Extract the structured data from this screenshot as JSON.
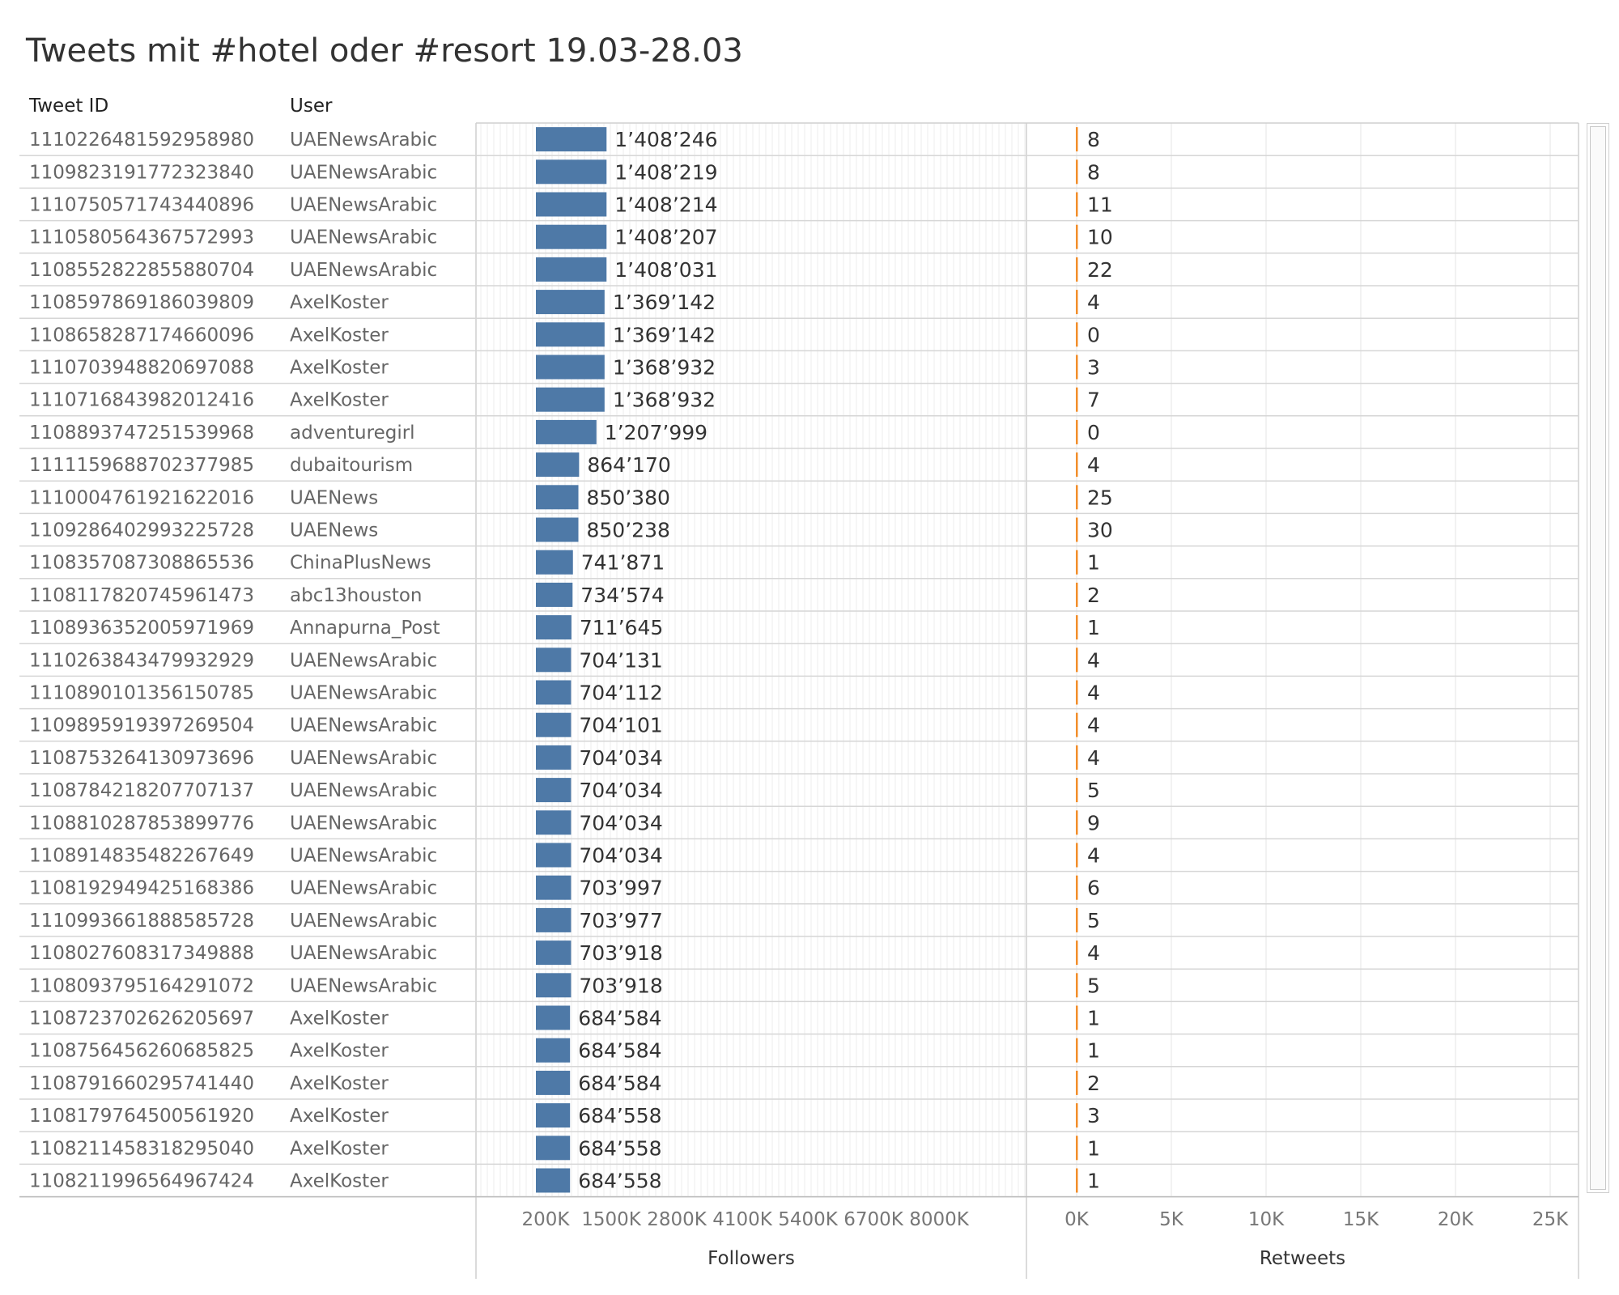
{
  "title": "Tweets mit #hotel oder #resort 19.03-28.03",
  "columns": {
    "tweet_id": "Tweet ID",
    "user": "User"
  },
  "chart_data": {
    "type": "bar",
    "title": "Tweets mit #hotel oder #resort 19.03-28.03",
    "rows": [
      {
        "tweet_id": "1110226481592958980",
        "user": "UAENewsArabic",
        "followers": 1408246,
        "followers_label": "1’408’246",
        "retweets": 8
      },
      {
        "tweet_id": "1109823191772323840",
        "user": "UAENewsArabic",
        "followers": 1408219,
        "followers_label": "1’408’219",
        "retweets": 8
      },
      {
        "tweet_id": "1110750571743440896",
        "user": "UAENewsArabic",
        "followers": 1408214,
        "followers_label": "1’408’214",
        "retweets": 11
      },
      {
        "tweet_id": "1110580564367572993",
        "user": "UAENewsArabic",
        "followers": 1408207,
        "followers_label": "1’408’207",
        "retweets": 10
      },
      {
        "tweet_id": "1108552822855880704",
        "user": "UAENewsArabic",
        "followers": 1408031,
        "followers_label": "1’408’031",
        "retweets": 22
      },
      {
        "tweet_id": "1108597869186039809",
        "user": "AxelKoster",
        "followers": 1369142,
        "followers_label": "1’369’142",
        "retweets": 4
      },
      {
        "tweet_id": "1108658287174660096",
        "user": "AxelKoster",
        "followers": 1369142,
        "followers_label": "1’369’142",
        "retweets": 0
      },
      {
        "tweet_id": "1110703948820697088",
        "user": "AxelKoster",
        "followers": 1368932,
        "followers_label": "1’368’932",
        "retweets": 3
      },
      {
        "tweet_id": "1110716843982012416",
        "user": "AxelKoster",
        "followers": 1368932,
        "followers_label": "1’368’932",
        "retweets": 7
      },
      {
        "tweet_id": "1108893747251539968",
        "user": "adventuregirl",
        "followers": 1207999,
        "followers_label": "1’207’999",
        "retweets": 0
      },
      {
        "tweet_id": "1111159688702377985",
        "user": "dubaitourism",
        "followers": 864170,
        "followers_label": "864’170",
        "retweets": 4
      },
      {
        "tweet_id": "1110004761921622016",
        "user": "UAENews",
        "followers": 850380,
        "followers_label": "850’380",
        "retweets": 25
      },
      {
        "tweet_id": "1109286402993225728",
        "user": "UAENews",
        "followers": 850238,
        "followers_label": "850’238",
        "retweets": 30
      },
      {
        "tweet_id": "1108357087308865536",
        "user": "ChinaPlusNews",
        "followers": 741871,
        "followers_label": "741’871",
        "retweets": 1
      },
      {
        "tweet_id": "1108117820745961473",
        "user": "abc13houston",
        "followers": 734574,
        "followers_label": "734’574",
        "retweets": 2
      },
      {
        "tweet_id": "1108936352005971969",
        "user": "Annapurna_Post",
        "followers": 711645,
        "followers_label": "711’645",
        "retweets": 1
      },
      {
        "tweet_id": "1110263843479932929",
        "user": "UAENewsArabic",
        "followers": 704131,
        "followers_label": "704’131",
        "retweets": 4
      },
      {
        "tweet_id": "1110890101356150785",
        "user": "UAENewsArabic",
        "followers": 704112,
        "followers_label": "704’112",
        "retweets": 4
      },
      {
        "tweet_id": "1109895919397269504",
        "user": "UAENewsArabic",
        "followers": 704101,
        "followers_label": "704’101",
        "retweets": 4
      },
      {
        "tweet_id": "1108753264130973696",
        "user": "UAENewsArabic",
        "followers": 704034,
        "followers_label": "704’034",
        "retweets": 4
      },
      {
        "tweet_id": "1108784218207707137",
        "user": "UAENewsArabic",
        "followers": 704034,
        "followers_label": "704’034",
        "retweets": 5
      },
      {
        "tweet_id": "1108810287853899776",
        "user": "UAENewsArabic",
        "followers": 704034,
        "followers_label": "704’034",
        "retweets": 9
      },
      {
        "tweet_id": "1108914835482267649",
        "user": "UAENewsArabic",
        "followers": 704034,
        "followers_label": "704’034",
        "retweets": 4
      },
      {
        "tweet_id": "1108192949425168386",
        "user": "UAENewsArabic",
        "followers": 703997,
        "followers_label": "703’997",
        "retweets": 6
      },
      {
        "tweet_id": "1110993661888585728",
        "user": "UAENewsArabic",
        "followers": 703977,
        "followers_label": "703’977",
        "retweets": 5
      },
      {
        "tweet_id": "1108027608317349888",
        "user": "UAENewsArabic",
        "followers": 703918,
        "followers_label": "703’918",
        "retweets": 4
      },
      {
        "tweet_id": "1108093795164291072",
        "user": "UAENewsArabic",
        "followers": 703918,
        "followers_label": "703’918",
        "retweets": 5
      },
      {
        "tweet_id": "1108723702626205697",
        "user": "AxelKoster",
        "followers": 684584,
        "followers_label": "684’584",
        "retweets": 1
      },
      {
        "tweet_id": "1108756456260685825",
        "user": "AxelKoster",
        "followers": 684584,
        "followers_label": "684’584",
        "retweets": 1
      },
      {
        "tweet_id": "1108791660295741440",
        "user": "AxelKoster",
        "followers": 684584,
        "followers_label": "684’584",
        "retweets": 2
      },
      {
        "tweet_id": "1108179764500561920",
        "user": "AxelKoster",
        "followers": 684558,
        "followers_label": "684’558",
        "retweets": 3
      },
      {
        "tweet_id": "1108211458318295040",
        "user": "AxelKoster",
        "followers": 684558,
        "followers_label": "684’558",
        "retweets": 1
      },
      {
        "tweet_id": "1108211996564967424",
        "user": "AxelKoster",
        "followers": 684558,
        "followers_label": "684’558",
        "retweets": 1
      }
    ],
    "followers_axis": {
      "label": "Followers",
      "ticks": [
        200000,
        1500000,
        2800000,
        4100000,
        5400000,
        6700000,
        8000000
      ],
      "tick_labels": [
        "200K",
        "1500K",
        "2800K",
        "4100K",
        "5400K",
        "6700K",
        "8000K"
      ]
    },
    "retweets_axis": {
      "label": "Retweets",
      "ticks": [
        0,
        5000,
        10000,
        15000,
        20000,
        25000
      ],
      "tick_labels": [
        "0K",
        "5K",
        "10K",
        "15K",
        "20K",
        "25K"
      ]
    },
    "colors": {
      "followers_bar": "#4e79a7",
      "retweets_bar": "#f28e2b",
      "grid": "#d9d9d9"
    }
  }
}
